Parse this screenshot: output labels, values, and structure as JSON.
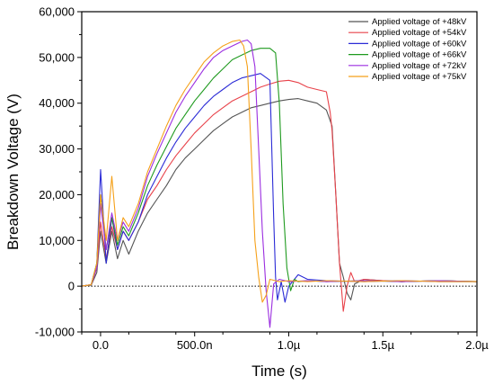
{
  "chart_data": {
    "type": "line",
    "title": "",
    "xlabel": "Time (s)",
    "ylabel": "Breakdown Voltage (V)",
    "xlim": [
      -0.1,
      2.0
    ],
    "ylim": [
      -10000,
      60000
    ],
    "x_unit": "µs",
    "xticks": [
      {
        "value": 0.0,
        "label": "0.0"
      },
      {
        "value": 0.5,
        "label": "500.0n"
      },
      {
        "value": 1.0,
        "label": "1.0µ"
      },
      {
        "value": 1.5,
        "label": "1.5µ"
      },
      {
        "value": 2.0,
        "label": "2.0µ"
      }
    ],
    "yticks": [
      {
        "value": -10000,
        "label": "-10,000"
      },
      {
        "value": 0,
        "label": "0"
      },
      {
        "value": 10000,
        "label": "10,000"
      },
      {
        "value": 20000,
        "label": "20,000"
      },
      {
        "value": 30000,
        "label": "30,000"
      },
      {
        "value": 40000,
        "label": "40,000"
      },
      {
        "value": 50000,
        "label": "50,000"
      },
      {
        "value": 60000,
        "label": "60,000"
      }
    ],
    "zero_line": true,
    "grid": false,
    "legend_position": "top-right",
    "series": [
      {
        "name": "Applied voltage of +48kV",
        "color": "#555555",
        "x": [
          -0.1,
          -0.05,
          -0.02,
          0.0,
          0.03,
          0.06,
          0.09,
          0.12,
          0.15,
          0.2,
          0.25,
          0.3,
          0.35,
          0.4,
          0.45,
          0.5,
          0.55,
          0.6,
          0.65,
          0.7,
          0.75,
          0.8,
          0.85,
          0.9,
          0.95,
          1.0,
          1.05,
          1.1,
          1.15,
          1.2,
          1.23,
          1.25,
          1.27,
          1.29,
          1.31,
          1.33,
          1.35,
          1.4,
          1.5,
          1.6,
          1.8,
          2.0
        ],
        "y": [
          0,
          200,
          3000,
          12000,
          5000,
          12000,
          6000,
          10000,
          7000,
          12000,
          16000,
          19000,
          22000,
          25500,
          28000,
          30000,
          32000,
          34000,
          35500,
          37000,
          38000,
          39000,
          39500,
          40000,
          40500,
          40800,
          41000,
          40500,
          40000,
          38500,
          35000,
          20000,
          5000,
          2000,
          -1500,
          -3000,
          500,
          1500,
          1200,
          1000,
          1200,
          1000
        ]
      },
      {
        "name": "Applied voltage of +54kV",
        "color": "#e8424a",
        "x": [
          -0.1,
          -0.05,
          -0.02,
          0.0,
          0.03,
          0.06,
          0.09,
          0.12,
          0.15,
          0.2,
          0.25,
          0.3,
          0.35,
          0.4,
          0.45,
          0.5,
          0.55,
          0.6,
          0.65,
          0.7,
          0.75,
          0.8,
          0.85,
          0.9,
          0.95,
          1.0,
          1.05,
          1.1,
          1.15,
          1.2,
          1.22,
          1.23,
          1.25,
          1.27,
          1.29,
          1.31,
          1.33,
          1.35,
          1.4,
          1.5,
          1.6,
          1.8,
          2.0
        ],
        "y": [
          0,
          300,
          4000,
          14000,
          6000,
          13000,
          8000,
          12000,
          10000,
          14000,
          19000,
          22000,
          25500,
          28500,
          31000,
          33500,
          35500,
          37500,
          39000,
          40500,
          41500,
          42500,
          43500,
          44200,
          44800,
          45000,
          44500,
          43500,
          43000,
          42500,
          38000,
          34000,
          20000,
          5000,
          -5500,
          0,
          3000,
          1000,
          1500,
          1200,
          1000,
          1200,
          1000
        ]
      },
      {
        "name": "Applied voltage of +60kV",
        "color": "#2b2bd6",
        "x": [
          -0.1,
          -0.05,
          -0.02,
          0.0,
          0.03,
          0.06,
          0.09,
          0.12,
          0.15,
          0.2,
          0.25,
          0.3,
          0.35,
          0.4,
          0.45,
          0.5,
          0.55,
          0.6,
          0.65,
          0.7,
          0.75,
          0.8,
          0.85,
          0.9,
          0.91,
          0.92,
          0.93,
          0.94,
          0.96,
          0.98,
          1.0,
          1.05,
          1.1,
          1.2,
          1.4,
          1.6,
          1.8,
          2.0
        ],
        "y": [
          0,
          300,
          5000,
          25500,
          5000,
          15000,
          8000,
          12000,
          10000,
          14000,
          20000,
          24000,
          28000,
          31500,
          34500,
          37000,
          39500,
          41500,
          43000,
          44500,
          45500,
          46000,
          46500,
          45000,
          30000,
          15000,
          2000,
          -3000,
          1000,
          -3500,
          0,
          2500,
          1500,
          1200,
          1000,
          1200,
          1000,
          1000
        ]
      },
      {
        "name": "Applied voltage of +66kV",
        "color": "#1f9a1f",
        "x": [
          -0.1,
          -0.05,
          -0.02,
          0.0,
          0.03,
          0.06,
          0.09,
          0.12,
          0.15,
          0.2,
          0.25,
          0.3,
          0.35,
          0.4,
          0.45,
          0.5,
          0.55,
          0.6,
          0.65,
          0.7,
          0.75,
          0.8,
          0.85,
          0.9,
          0.93,
          0.95,
          0.97,
          0.99,
          1.01,
          1.03,
          1.05,
          1.1,
          1.2,
          1.4,
          1.6,
          1.8,
          2.0
        ],
        "y": [
          0,
          300,
          5000,
          20000,
          8000,
          15000,
          9000,
          13000,
          11000,
          16000,
          22000,
          26500,
          30500,
          34500,
          37500,
          40500,
          43000,
          45500,
          47500,
          49500,
          50500,
          51500,
          52000,
          52000,
          51000,
          40000,
          18000,
          4000,
          -1000,
          1500,
          1000,
          1200,
          1000,
          1200,
          1000,
          1200,
          1000
        ]
      },
      {
        "name": "Applied voltage of +72kV",
        "color": "#9b2ee0",
        "x": [
          -0.1,
          -0.05,
          -0.02,
          0.0,
          0.03,
          0.06,
          0.09,
          0.12,
          0.15,
          0.2,
          0.25,
          0.3,
          0.35,
          0.4,
          0.45,
          0.5,
          0.55,
          0.6,
          0.65,
          0.7,
          0.75,
          0.78,
          0.8,
          0.82,
          0.84,
          0.86,
          0.88,
          0.9,
          0.92,
          0.95,
          1.0,
          1.1,
          1.2,
          1.4,
          1.6,
          1.8,
          2.0
        ],
        "y": [
          0,
          300,
          4000,
          18000,
          8000,
          16000,
          10000,
          14000,
          12000,
          17000,
          24000,
          29000,
          33500,
          38000,
          41500,
          44500,
          47500,
          50000,
          51500,
          52500,
          53500,
          53800,
          53000,
          48000,
          30000,
          12000,
          -1000,
          -9000,
          500,
          1500,
          1000,
          1200,
          1000,
          1200,
          1000,
          1200,
          1000
        ]
      },
      {
        "name": "Applied voltage of +75kV",
        "color": "#f5a11a",
        "x": [
          -0.1,
          -0.05,
          -0.02,
          0.0,
          0.03,
          0.06,
          0.09,
          0.12,
          0.15,
          0.2,
          0.25,
          0.3,
          0.35,
          0.4,
          0.45,
          0.5,
          0.55,
          0.6,
          0.65,
          0.7,
          0.74,
          0.76,
          0.78,
          0.8,
          0.82,
          0.84,
          0.86,
          0.88,
          0.9,
          0.95,
          1.0,
          1.1,
          1.2,
          1.4,
          1.6,
          1.8,
          2.0
        ],
        "y": [
          0,
          300,
          5000,
          20000,
          10000,
          24000,
          10000,
          15000,
          13000,
          18000,
          25000,
          30000,
          35000,
          39500,
          43000,
          46000,
          49000,
          51000,
          52500,
          53500,
          53800,
          52500,
          48000,
          30000,
          10000,
          2000,
          -3500,
          -2000,
          1500,
          1000,
          1200,
          1000,
          1200,
          1000,
          1200,
          1000,
          1000
        ]
      }
    ]
  }
}
